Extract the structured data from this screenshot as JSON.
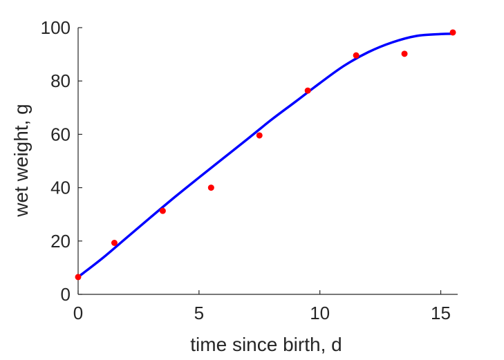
{
  "chart_data": {
    "type": "scatter",
    "xlabel": "time since birth, d",
    "ylabel": "wet weight, g",
    "xlim": [
      0,
      15.7
    ],
    "ylim": [
      0,
      100
    ],
    "xticks": [
      "0",
      "5",
      "10",
      "15"
    ],
    "yticks": [
      "0",
      "20",
      "40",
      "60",
      "80",
      "100"
    ],
    "grid": false,
    "series": [
      {
        "kind": "points",
        "color": "#ff0000",
        "x": [
          0,
          1.5,
          3.5,
          5.5,
          7.5,
          9.5,
          11.5,
          13.5,
          15.5
        ],
        "y": [
          6.5,
          19.3,
          31.3,
          40.0,
          59.6,
          76.4,
          89.6,
          90.2,
          98.2
        ]
      },
      {
        "kind": "line",
        "color": "#0000ff",
        "x": [
          0,
          1,
          2,
          3,
          4,
          5,
          6,
          7,
          8,
          9,
          10,
          11,
          12,
          13,
          14,
          15,
          15.5
        ],
        "y": [
          6.5,
          13.5,
          21.2,
          28.9,
          36.5,
          43.8,
          51.0,
          58.2,
          65.5,
          72.3,
          79.2,
          85.7,
          90.8,
          94.5,
          96.9,
          97.6,
          97.7
        ]
      }
    ]
  }
}
